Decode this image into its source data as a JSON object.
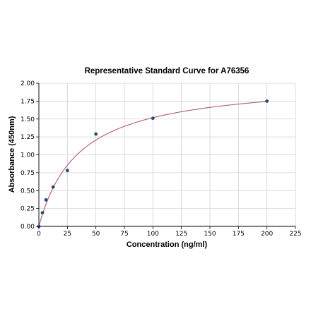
{
  "chart_data": {
    "type": "scatter",
    "title": "Representative Standard Curve for A76356",
    "xlabel": "Concentration (ng/ml)",
    "ylabel": "Absorbance (450nm)",
    "xlim": [
      0,
      225
    ],
    "ylim": [
      0,
      2.0
    ],
    "x_ticks": [
      0,
      25,
      50,
      75,
      100,
      125,
      150,
      175,
      200,
      225
    ],
    "x_tick_labels": [
      "0",
      "25",
      "50",
      "75",
      "100",
      "125",
      "150",
      "175",
      "200",
      "225"
    ],
    "y_ticks": [
      0,
      0.25,
      0.5,
      0.75,
      1.0,
      1.25,
      1.5,
      1.75,
      2.0
    ],
    "y_tick_labels": [
      "0.00",
      "0.25",
      "0.50",
      "0.75",
      "1.00",
      "1.25",
      "1.50",
      "1.75",
      "2.00"
    ],
    "grid": true,
    "legend": "none",
    "series": [
      {
        "points": [
          {
            "x": 0,
            "y": 0.0
          },
          {
            "x": 3.125,
            "y": 0.19
          },
          {
            "x": 6.25,
            "y": 0.37
          },
          {
            "x": 12.5,
            "y": 0.55
          },
          {
            "x": 25,
            "y": 0.78
          },
          {
            "x": 50,
            "y": 1.29
          },
          {
            "x": 100,
            "y": 1.51
          },
          {
            "x": 200,
            "y": 1.75
          }
        ],
        "marker_color": "#2a4a78"
      }
    ],
    "fit_curve": {
      "model": "hyperbolic",
      "vmax": 2.05,
      "k": 35,
      "color": "#b05a6e"
    }
  }
}
